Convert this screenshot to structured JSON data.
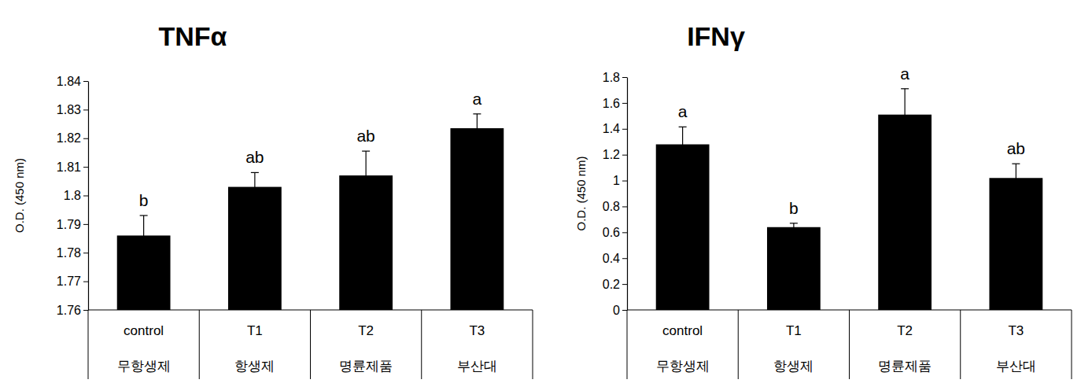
{
  "chart_data": [
    {
      "type": "bar",
      "title": "TNFα",
      "y_label": "O.D. (450 nm)",
      "categories": [
        "control",
        "T1",
        "T2",
        "T3"
      ],
      "subcategories": [
        "무항생제",
        "항생제",
        "명륜제품",
        "부산대"
      ],
      "values": [
        1.786,
        1.803,
        1.807,
        1.8235
      ],
      "errors": [
        0.007,
        0.005,
        0.0085,
        0.005
      ],
      "annotations": [
        "b",
        "ab",
        "ab",
        "a"
      ],
      "color": "#000000",
      "ylim": [
        1.76,
        1.84
      ],
      "yticks": [
        1.76,
        1.77,
        1.78,
        1.79,
        1.8,
        1.81,
        1.82,
        1.83,
        1.84
      ],
      "grid": false
    },
    {
      "type": "bar",
      "title": "IFNγ",
      "y_label": "O.D. (450 nm)",
      "categories": [
        "control",
        "T1",
        "T2",
        "T3"
      ],
      "subcategories": [
        "무항생제",
        "항생제",
        "명륜제품",
        "부산대"
      ],
      "values": [
        1.28,
        0.64,
        1.51,
        1.02
      ],
      "errors": [
        0.135,
        0.03,
        0.2,
        0.11
      ],
      "annotations": [
        "a",
        "b",
        "a",
        "ab"
      ],
      "color": "#000000",
      "ylim": [
        0,
        1.8
      ],
      "yticks": [
        0,
        0.2,
        0.4,
        0.6,
        0.8,
        1,
        1.2,
        1.4,
        1.6,
        1.8
      ],
      "grid": false
    }
  ]
}
